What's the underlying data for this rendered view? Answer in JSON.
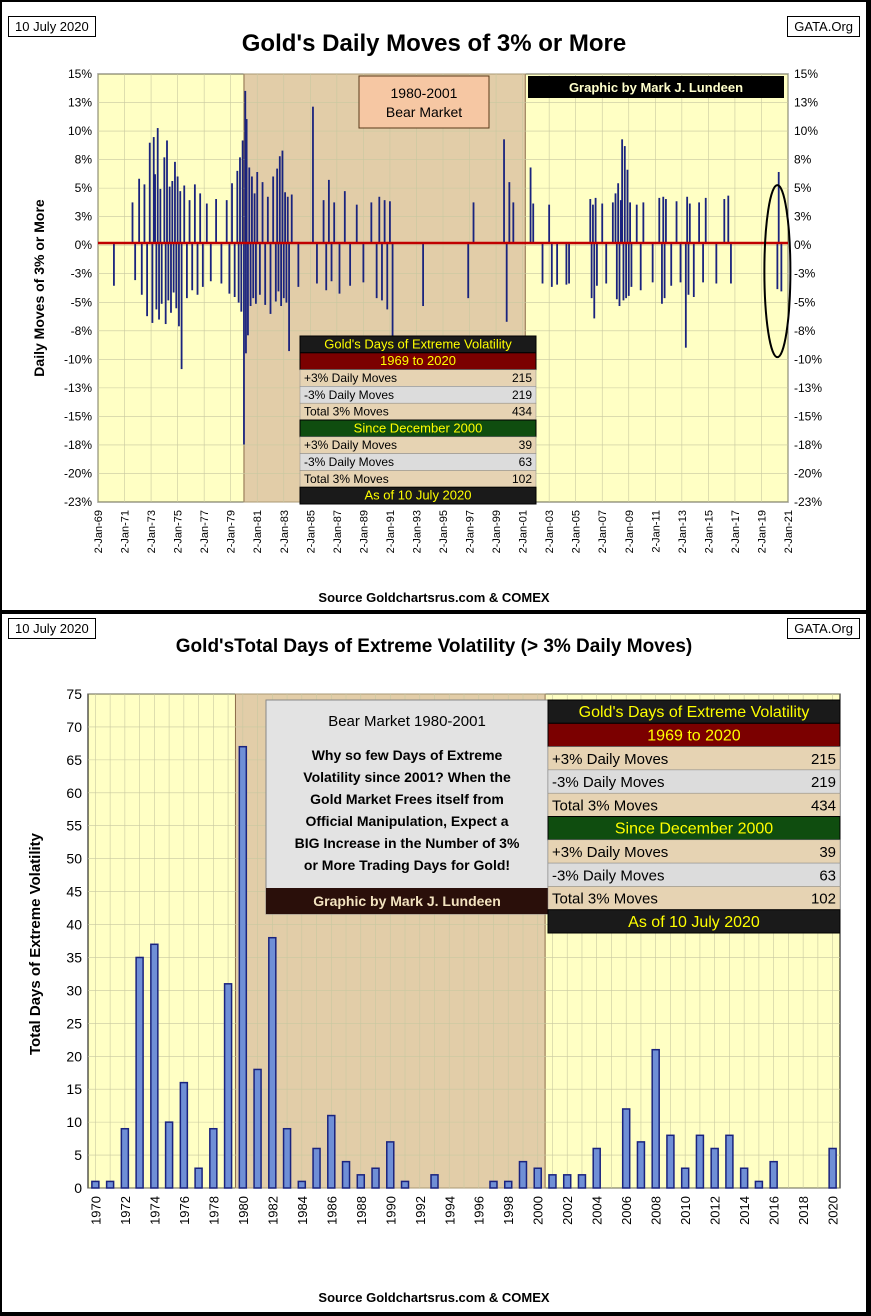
{
  "top": {
    "date": "10 July 2020",
    "site": "GATA.Org",
    "title": "Gold's Daily Moves of 3% or More",
    "bear_label_1": "1980-2001",
    "bear_label_2": "Bear Market",
    "credit": "Graphic by Mark J. Lundeen",
    "source": "Source Goldchartsrus.com & COMEX"
  },
  "bottom": {
    "date": "10 July 2020",
    "site": "GATA.Org",
    "title": "Gold'sTotal Days of Extreme Volatility (> 3% Daily Moves)",
    "bear_title": "Bear Market 1980-2001",
    "note": "Why so few Days of Extreme Volatility since 2001? When the Gold Market Frees itself from Official Manipulation, Expect a BIG Increase in the Number of 3% or More Trading Days for Gold!",
    "credit": "Graphic by Mark J. Lundeen",
    "source": "Source Goldchartsrus.com & COMEX"
  },
  "volatility_table": {
    "title": "Gold's Days of Extreme Volatility",
    "period1": "1969 to 2020",
    "rows1": [
      {
        "label": "+3% Daily Moves",
        "value": "215"
      },
      {
        "label": "-3% Daily Moves",
        "value": "219"
      },
      {
        "label": "Total 3% Moves",
        "value": "434"
      }
    ],
    "period2": "Since December 2000",
    "rows2": [
      {
        "label": "+3% Daily Moves",
        "value": "39"
      },
      {
        "label": "-3% Daily Moves",
        "value": "63"
      },
      {
        "label": "Total 3% Moves",
        "value": "102"
      }
    ],
    "footer": "As of 10 July 2020"
  },
  "colors": {
    "plot_bg": "#ffffc4",
    "bear_shade": "#e2cda8",
    "bar": "#1a237e",
    "bar_fill": "#6f8fd6",
    "zero_line": "#c00000",
    "table_header_bg": "#1a1a1a",
    "table_header_fg": "#ffff00",
    "period1_bg": "#7b0000",
    "period2_bg": "#0f4d0f",
    "row_tan": "#e6d3b3",
    "row_grey": "#dcdcdc"
  },
  "chart_data": [
    {
      "type": "bar",
      "title": "Gold's Daily Moves of 3% or More",
      "ylabel": "Daily Moves of 3% or More",
      "xlabel": "",
      "ylim": [
        -23,
        15
      ],
      "xlim": [
        1969,
        2021
      ],
      "y_ticks": [
        "15%",
        "13%",
        "10%",
        "8%",
        "5%",
        "3%",
        "0%",
        "-3%",
        "-5%",
        "-8%",
        "-10%",
        "-13%",
        "-15%",
        "-18%",
        "-20%",
        "-23%"
      ],
      "x_ticks": [
        "2-Jan-69",
        "2-Jan-71",
        "2-Jan-73",
        "2-Jan-75",
        "2-Jan-77",
        "2-Jan-79",
        "2-Jan-81",
        "2-Jan-83",
        "2-Jan-85",
        "2-Jan-87",
        "2-Jan-89",
        "2-Jan-91",
        "2-Jan-93",
        "2-Jan-95",
        "2-Jan-97",
        "2-Jan-99",
        "2-Jan-01",
        "2-Jan-03",
        "2-Jan-05",
        "2-Jan-07",
        "2-Jan-09",
        "2-Jan-11",
        "2-Jan-13",
        "2-Jan-15",
        "2-Jan-17",
        "2-Jan-19",
        "2-Jan-21"
      ],
      "shaded_range": [
        1980,
        2001.2
      ],
      "moves": [
        [
          1970.2,
          -3.8
        ],
        [
          1971.6,
          3.6
        ],
        [
          1971.8,
          -3.3
        ],
        [
          1972.1,
          5.7
        ],
        [
          1972.3,
          -4.6
        ],
        [
          1972.5,
          5.2
        ],
        [
          1972.7,
          -6.5
        ],
        [
          1972.9,
          8.9
        ],
        [
          1973.1,
          -7.1
        ],
        [
          1973.2,
          9.4
        ],
        [
          1973.3,
          6.1
        ],
        [
          1973.4,
          -5.9
        ],
        [
          1973.5,
          10.2
        ],
        [
          1973.6,
          -6.8
        ],
        [
          1973.7,
          4.8
        ],
        [
          1973.8,
          -5.4
        ],
        [
          1974.0,
          7.6
        ],
        [
          1974.1,
          -7.2
        ],
        [
          1974.2,
          9.1
        ],
        [
          1974.3,
          -5.1
        ],
        [
          1974.4,
          5.0
        ],
        [
          1974.5,
          -6.2
        ],
        [
          1974.6,
          5.5
        ],
        [
          1974.7,
          -4.4
        ],
        [
          1974.8,
          7.2
        ],
        [
          1974.9,
          -5.8
        ],
        [
          1975.0,
          5.9
        ],
        [
          1975.1,
          -7.4
        ],
        [
          1975.2,
          4.6
        ],
        [
          1975.3,
          -11.2
        ],
        [
          1975.5,
          5.1
        ],
        [
          1975.7,
          -4.9
        ],
        [
          1975.9,
          3.8
        ],
        [
          1976.1,
          -4.2
        ],
        [
          1976.3,
          5.2
        ],
        [
          1976.5,
          -4.6
        ],
        [
          1976.7,
          4.4
        ],
        [
          1976.9,
          -3.9
        ],
        [
          1977.2,
          3.5
        ],
        [
          1977.5,
          -3.4
        ],
        [
          1977.9,
          3.9
        ],
        [
          1978.3,
          -3.6
        ],
        [
          1978.7,
          3.8
        ],
        [
          1978.9,
          -4.5
        ],
        [
          1979.1,
          5.3
        ],
        [
          1979.3,
          -4.8
        ],
        [
          1979.5,
          6.4
        ],
        [
          1979.6,
          -5.3
        ],
        [
          1979.7,
          7.6
        ],
        [
          1979.8,
          -6.1
        ],
        [
          1979.9,
          9.1
        ],
        [
          1980.0,
          -17.9
        ],
        [
          1980.1,
          13.5
        ],
        [
          1980.15,
          -9.8
        ],
        [
          1980.2,
          11.0
        ],
        [
          1980.3,
          -8.2
        ],
        [
          1980.4,
          6.7
        ],
        [
          1980.5,
          -5.6
        ],
        [
          1980.6,
          5.9
        ],
        [
          1980.7,
          -4.9
        ],
        [
          1980.8,
          4.4
        ],
        [
          1980.9,
          -5.4
        ],
        [
          1981.0,
          6.3
        ],
        [
          1981.2,
          -4.6
        ],
        [
          1981.4,
          5.4
        ],
        [
          1981.6,
          -5.5
        ],
        [
          1981.8,
          4.1
        ],
        [
          1982.0,
          -6.3
        ],
        [
          1982.2,
          5.9
        ],
        [
          1982.4,
          -5.2
        ],
        [
          1982.5,
          6.6
        ],
        [
          1982.6,
          -4.3
        ],
        [
          1982.7,
          7.7
        ],
        [
          1982.8,
          -5.6
        ],
        [
          1982.9,
          8.2
        ],
        [
          1983.0,
          -4.9
        ],
        [
          1983.1,
          4.5
        ],
        [
          1983.2,
          -5.3
        ],
        [
          1983.3,
          4.1
        ],
        [
          1983.4,
          -9.6
        ],
        [
          1983.6,
          4.3
        ],
        [
          1984.1,
          -3.9
        ],
        [
          1985.2,
          12.1
        ],
        [
          1985.5,
          -3.6
        ],
        [
          1986.0,
          3.8
        ],
        [
          1986.2,
          -4.2
        ],
        [
          1986.4,
          5.6
        ],
        [
          1986.6,
          -3.4
        ],
        [
          1986.8,
          3.6
        ],
        [
          1987.2,
          -4.5
        ],
        [
          1987.6,
          4.6
        ],
        [
          1988.0,
          -3.8
        ],
        [
          1988.5,
          3.4
        ],
        [
          1989.0,
          -3.5
        ],
        [
          1989.6,
          3.6
        ],
        [
          1990.0,
          -4.9
        ],
        [
          1990.2,
          4.1
        ],
        [
          1990.4,
          -5.1
        ],
        [
          1990.6,
          3.8
        ],
        [
          1990.8,
          -5.9
        ],
        [
          1991.0,
          3.7
        ],
        [
          1991.2,
          -8.3
        ],
        [
          1993.5,
          -5.6
        ],
        [
          1996.9,
          -4.9
        ],
        [
          1997.3,
          3.6
        ],
        [
          1999.6,
          9.2
        ],
        [
          1999.8,
          -7.0
        ],
        [
          2000.0,
          5.4
        ],
        [
          2000.3,
          3.6
        ],
        [
          2001.6,
          6.7
        ],
        [
          2001.8,
          3.5
        ],
        [
          2002.5,
          -3.6
        ],
        [
          2003.0,
          3.4
        ],
        [
          2003.2,
          -3.9
        ],
        [
          2003.6,
          -3.7
        ],
        [
          2004.3,
          -3.7
        ],
        [
          2004.5,
          -3.6
        ],
        [
          2006.1,
          3.9
        ],
        [
          2006.2,
          -4.9
        ],
        [
          2006.3,
          3.4
        ],
        [
          2006.4,
          -6.7
        ],
        [
          2006.5,
          4.0
        ],
        [
          2006.6,
          -3.8
        ],
        [
          2007.0,
          3.5
        ],
        [
          2007.3,
          -3.6
        ],
        [
          2007.8,
          3.6
        ],
        [
          2008.0,
          4.4
        ],
        [
          2008.1,
          -5.0
        ],
        [
          2008.2,
          5.3
        ],
        [
          2008.3,
          -5.6
        ],
        [
          2008.4,
          3.8
        ],
        [
          2008.5,
          9.2
        ],
        [
          2008.6,
          -5.1
        ],
        [
          2008.7,
          8.6
        ],
        [
          2008.8,
          -4.9
        ],
        [
          2008.9,
          6.5
        ],
        [
          2009.0,
          -4.7
        ],
        [
          2009.1,
          3.6
        ],
        [
          2009.2,
          -3.9
        ],
        [
          2009.6,
          3.4
        ],
        [
          2009.9,
          -4.2
        ],
        [
          2010.1,
          3.6
        ],
        [
          2010.8,
          -3.5
        ],
        [
          2011.3,
          4.0
        ],
        [
          2011.5,
          -5.4
        ],
        [
          2011.6,
          4.1
        ],
        [
          2011.7,
          -4.9
        ],
        [
          2011.8,
          3.9
        ],
        [
          2012.2,
          -3.8
        ],
        [
          2012.6,
          3.7
        ],
        [
          2012.9,
          -3.5
        ],
        [
          2013.3,
          -9.3
        ],
        [
          2013.4,
          4.1
        ],
        [
          2013.5,
          -4.6
        ],
        [
          2013.6,
          3.5
        ],
        [
          2013.9,
          -4.8
        ],
        [
          2014.3,
          3.6
        ],
        [
          2014.6,
          -3.5
        ],
        [
          2014.8,
          4.0
        ],
        [
          2015.6,
          -3.6
        ],
        [
          2016.2,
          3.9
        ],
        [
          2016.5,
          4.2
        ],
        [
          2016.7,
          -3.6
        ],
        [
          2020.2,
          -4.1
        ],
        [
          2020.3,
          6.3
        ],
        [
          2020.5,
          -4.3
        ]
      ]
    },
    {
      "type": "bar",
      "title": "Gold'sTotal Days of Extreme Volatility (> 3% Daily Moves)",
      "ylabel": "Total Days of Extreme Volatility",
      "xlabel": "",
      "ylim": [
        0,
        75
      ],
      "y_ticks": [
        "75",
        "70",
        "65",
        "60",
        "55",
        "50",
        "45",
        "40",
        "35",
        "30",
        "25",
        "20",
        "15",
        "10",
        "5",
        "0"
      ],
      "categories": [
        "1970",
        "1971",
        "1972",
        "1973",
        "1974",
        "1975",
        "1976",
        "1977",
        "1978",
        "1979",
        "1980",
        "1981",
        "1982",
        "1983",
        "1984",
        "1985",
        "1986",
        "1987",
        "1988",
        "1989",
        "1990",
        "1991",
        "1992",
        "1993",
        "1994",
        "1995",
        "1996",
        "1997",
        "1998",
        "1999",
        "2000",
        "2001",
        "2002",
        "2003",
        "2004",
        "2005",
        "2006",
        "2007",
        "2008",
        "2009",
        "2010",
        "2011",
        "2012",
        "2013",
        "2014",
        "2015",
        "2016",
        "2017",
        "2018",
        "2019",
        "2020"
      ],
      "x_tick_labels": [
        "1970",
        "1972",
        "1974",
        "1976",
        "1978",
        "1980",
        "1982",
        "1984",
        "1986",
        "1988",
        "1990",
        "1992",
        "1994",
        "1996",
        "1998",
        "2000",
        "2002",
        "2004",
        "2006",
        "2008",
        "2010",
        "2012",
        "2014",
        "2016",
        "2018",
        "2020"
      ],
      "values": [
        1,
        1,
        9,
        35,
        37,
        10,
        16,
        3,
        9,
        31,
        67,
        18,
        38,
        9,
        1,
        6,
        11,
        4,
        2,
        3,
        7,
        1,
        0,
        2,
        0,
        0,
        0,
        1,
        1,
        4,
        3,
        2,
        2,
        2,
        6,
        0,
        12,
        7,
        21,
        8,
        3,
        8,
        6,
        8,
        3,
        1,
        4,
        0,
        0,
        0,
        6
      ],
      "shaded_range": [
        "1980",
        "2000"
      ]
    }
  ]
}
